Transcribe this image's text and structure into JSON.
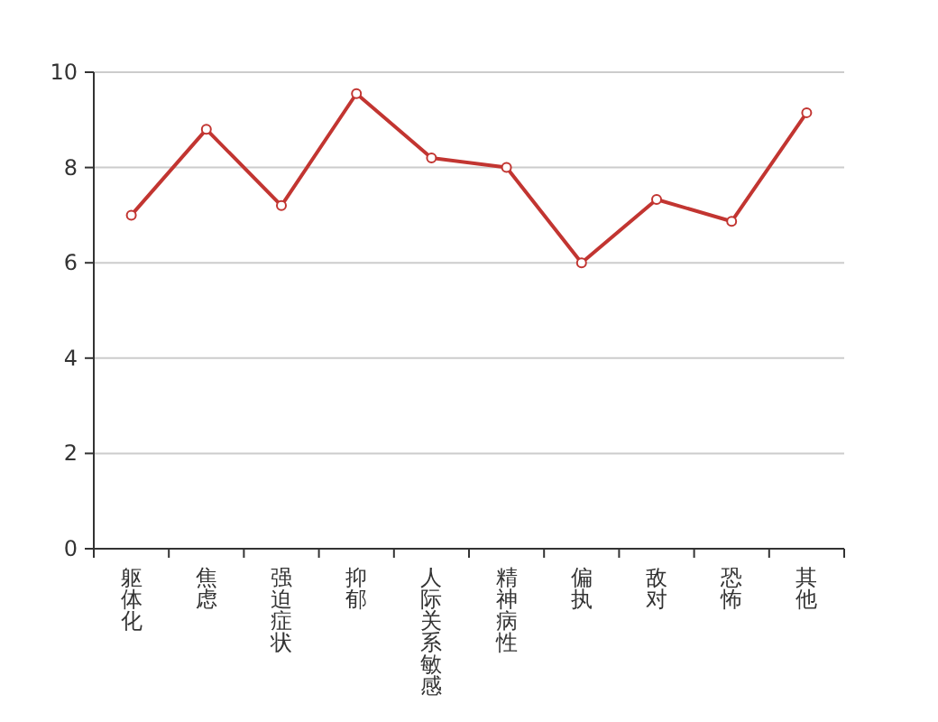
{
  "chart_data": {
    "type": "line",
    "categories": [
      "躯体化",
      "焦虑",
      "强迫症状",
      "抑郁",
      "人际关系敏感",
      "精神病性",
      "偏执",
      "敌对",
      "恐怖",
      "其他"
    ],
    "series": [
      {
        "color": "#c23531",
        "values": [
          7.0,
          8.8,
          7.2,
          9.55,
          8.2,
          8.0,
          6.0,
          7.33,
          6.87,
          9.15
        ]
      }
    ],
    "ylim": [
      0,
      10
    ],
    "yticks": [
      0,
      2,
      4,
      6,
      8,
      10
    ],
    "grid": "y",
    "marker": "circle",
    "line_style": "solid"
  }
}
